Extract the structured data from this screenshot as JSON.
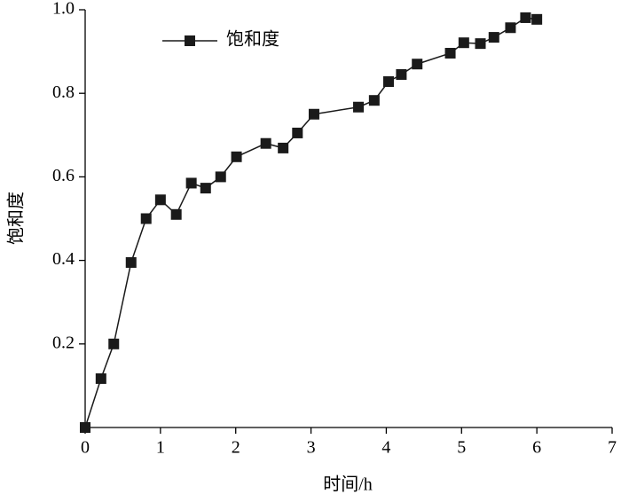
{
  "chart_data": {
    "type": "line",
    "x_label": "时间/h",
    "y_label": "饱和度",
    "legend": "upper left",
    "xlim": [
      0,
      7
    ],
    "xticks": [
      0,
      1,
      2,
      3,
      4,
      5,
      6,
      7
    ],
    "ylim": [
      0,
      1
    ],
    "yticks": [
      {
        "value": 0.2,
        "label": "0.2"
      },
      {
        "value": 0.4,
        "label": "0.4"
      },
      {
        "value": 0.6,
        "label": "0.6"
      },
      {
        "value": 0.8,
        "label": "0.8"
      },
      {
        "value": 1,
        "label": "1.0"
      }
    ],
    "x": [
      0,
      0.21,
      0.38,
      0.61,
      0.81,
      1.0,
      1.21,
      1.41,
      1.6,
      1.8,
      2.01,
      2.4,
      2.63,
      2.82,
      3.04,
      3.63,
      3.84,
      4.03,
      4.2,
      4.41,
      4.85,
      5.03,
      5.25,
      5.43,
      5.65,
      5.85,
      6.0
    ],
    "series": [
      {
        "name": "饱和度",
        "color": "#1a1a1a",
        "values": [
          0.0,
          0.117,
          0.2,
          0.395,
          0.5,
          0.545,
          0.51,
          0.585,
          0.573,
          0.6,
          0.648,
          0.68,
          0.669,
          0.705,
          0.75,
          0.767,
          0.783,
          0.828,
          0.845,
          0.87,
          0.896,
          0.921,
          0.919,
          0.934,
          0.957,
          0.981,
          0.977
        ]
      }
    ]
  }
}
